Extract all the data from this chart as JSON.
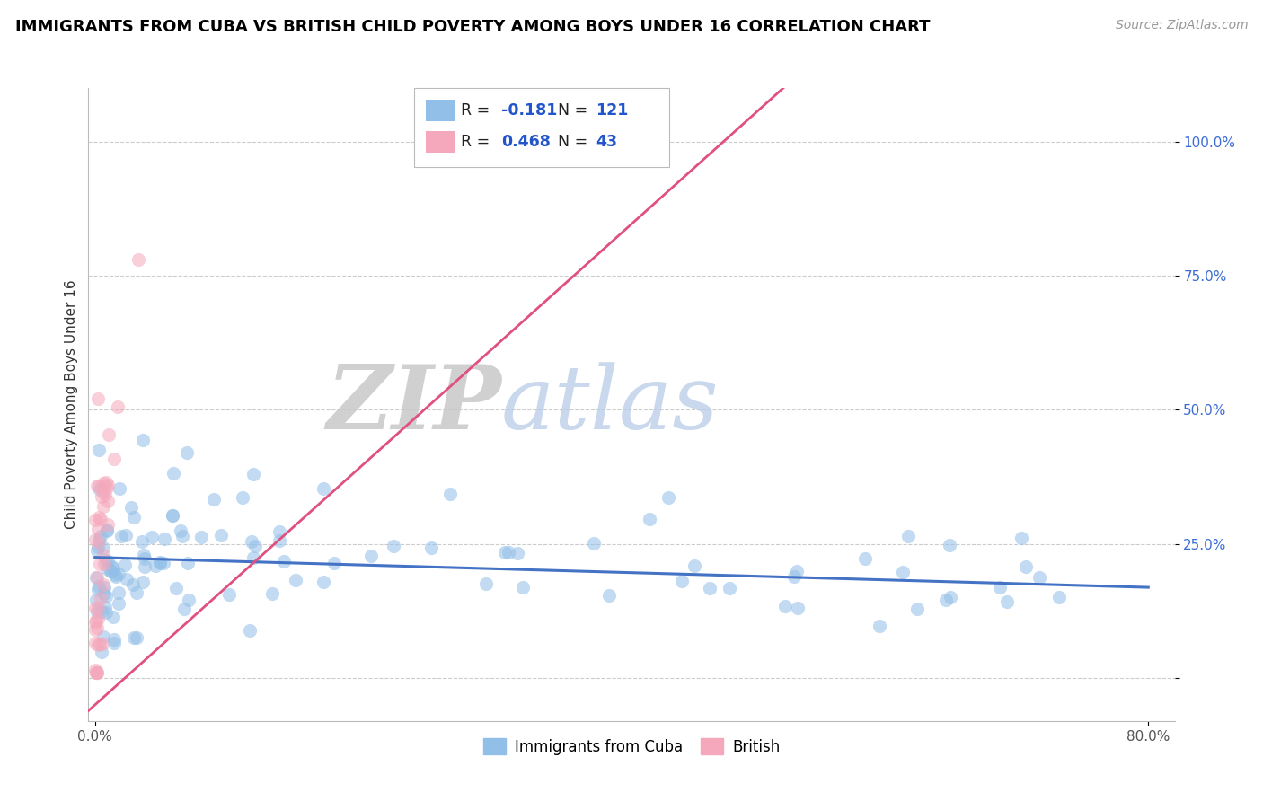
{
  "title": "IMMIGRANTS FROM CUBA VS BRITISH CHILD POVERTY AMONG BOYS UNDER 16 CORRELATION CHART",
  "source": "Source: ZipAtlas.com",
  "ylabel": "Child Poverty Among Boys Under 16",
  "xlim": [
    -0.005,
    0.82
  ],
  "ylim": [
    -0.08,
    1.1
  ],
  "xtick_vals": [
    0.0,
    0.8
  ],
  "xtick_labels": [
    "0.0%",
    "80.0%"
  ],
  "ytick_vals": [
    0.0,
    0.25,
    0.5,
    0.75,
    1.0
  ],
  "ytick_labels": [
    "",
    "25.0%",
    "50.0%",
    "75.0%",
    "100.0%"
  ],
  "background_color": "#ffffff",
  "grid_color": "#cccccc",
  "watermark_zip": "ZIP",
  "watermark_atlas": "atlas",
  "blue_color": "#92bfe8",
  "pink_color": "#f5a8bc",
  "blue_line_color": "#4472c4",
  "pink_line_color": "#e05080",
  "R_blue": -0.181,
  "N_blue": 121,
  "R_pink": 0.468,
  "N_pink": 43,
  "legend_blue_label": "Immigrants from Cuba",
  "legend_pink_label": "British",
  "blue_text_color": "#2255cc",
  "right_axis_color": "#3b6cd4",
  "title_fontsize": 13,
  "source_fontsize": 10,
  "scatter_size": 120,
  "scatter_alpha": 0.55
}
